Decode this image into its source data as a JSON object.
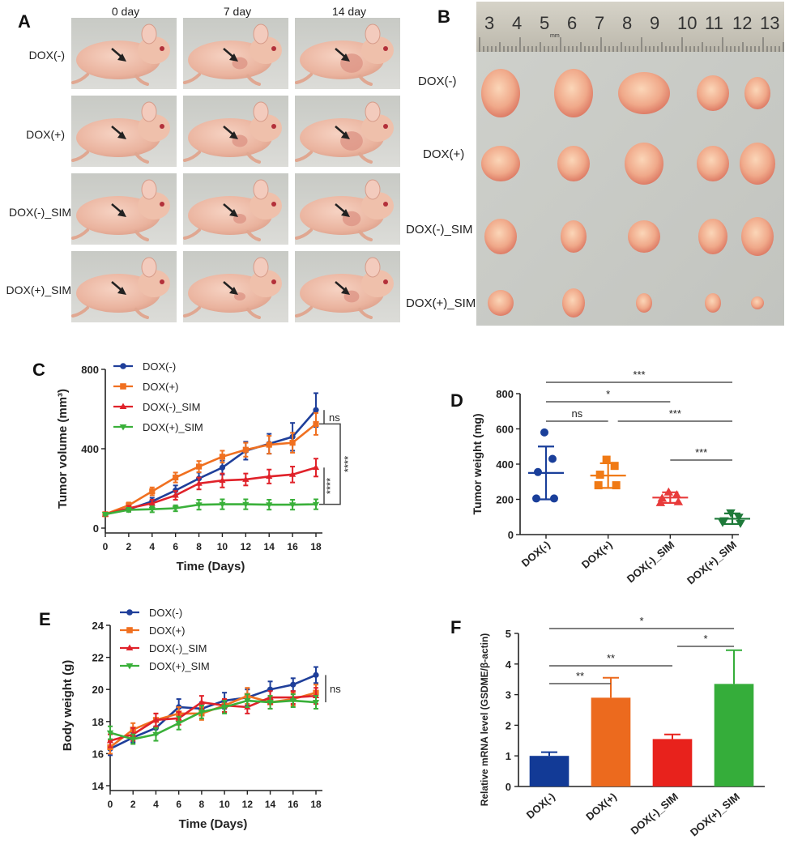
{
  "panel_a": {
    "letter": "A",
    "columns": [
      "0 day",
      "7 day",
      "14 day"
    ],
    "rows": [
      "DOX(-)",
      "DOX(+)",
      "DOX(-)_SIM",
      "DOX(+)_SIM"
    ]
  },
  "panel_b": {
    "letter": "B",
    "rows": [
      "DOX(-)",
      "DOX(+)",
      "DOX(-)_SIM",
      "DOX(+)_SIM"
    ],
    "ruler_numbers": [
      "3",
      "4",
      "5",
      "6",
      "7",
      "8",
      "9",
      "10",
      "11",
      "12",
      "13"
    ],
    "ruler_unit": "mm"
  },
  "chart_data": [
    {
      "panel": "C",
      "type": "line",
      "xlabel": "Time (Days)",
      "ylabel": "Tumor volume (mm³)",
      "x": [
        0,
        2,
        4,
        6,
        8,
        10,
        12,
        14,
        16,
        18
      ],
      "xticks": [
        "0",
        "2",
        "4",
        "6",
        "8",
        "10",
        "12",
        "14",
        "16",
        "18"
      ],
      "ylim": [
        0,
        800
      ],
      "yticks": [
        "0",
        "400",
        "800"
      ],
      "legend_position": "top-left",
      "series": [
        {
          "name": "DOX(-)",
          "color": "#1f3f9a",
          "marker": "circle",
          "values": [
            70,
            95,
            135,
            190,
            250,
            305,
            390,
            425,
            460,
            595
          ],
          "errors": [
            8,
            12,
            18,
            25,
            30,
            35,
            45,
            50,
            70,
            85
          ]
        },
        {
          "name": "DOX(+)",
          "color": "#f07020",
          "marker": "square",
          "values": [
            70,
            115,
            185,
            255,
            310,
            360,
            395,
            420,
            430,
            525
          ],
          "errors": [
            8,
            14,
            20,
            25,
            28,
            30,
            35,
            45,
            50,
            55
          ]
        },
        {
          "name": "DOX(-)_SIM",
          "color": "#e0222a",
          "marker": "triangle-up",
          "values": [
            70,
            100,
            125,
            165,
            225,
            240,
            245,
            260,
            270,
            305
          ],
          "errors": [
            8,
            12,
            18,
            22,
            30,
            35,
            30,
            35,
            40,
            45
          ]
        },
        {
          "name": "DOX(+)_SIM",
          "color": "#3ab03a",
          "marker": "triangle-down",
          "values": [
            70,
            92,
            95,
            100,
            118,
            120,
            120,
            118,
            118,
            120
          ],
          "errors": [
            6,
            10,
            15,
            15,
            25,
            25,
            25,
            25,
            25,
            25
          ]
        }
      ],
      "annotations": [
        "ns",
        "****",
        "****"
      ]
    },
    {
      "panel": "D",
      "type": "scatter",
      "ylabel": "Tumor weight  (mg)",
      "categories": [
        "DOX(-)",
        "DOX(+)",
        "DOX(-)_SIM",
        "DOX(+)_SIM"
      ],
      "ylim": [
        0,
        800
      ],
      "yticks": [
        "0",
        "200",
        "400",
        "600",
        "800"
      ],
      "groups": [
        {
          "name": "DOX(-)",
          "color": "#1a3f9a",
          "marker": "circle",
          "points": [
            580,
            430,
            355,
            205,
            205
          ],
          "mean": 350,
          "sd": 150
        },
        {
          "name": "DOX(+)",
          "color": "#f07a15",
          "marker": "square",
          "points": [
            425,
            390,
            340,
            280,
            280
          ],
          "mean": 335,
          "sd": 70
        },
        {
          "name": "DOX(-)_SIM",
          "color": "#e83a3a",
          "marker": "triangle-up",
          "points": [
            240,
            225,
            205,
            180,
            185
          ],
          "mean": 210,
          "sd": 30
        },
        {
          "name": "DOX(+)_SIM",
          "color": "#1f7a3a",
          "marker": "triangle-down",
          "points": [
            125,
            100,
            80,
            70,
            65
          ],
          "mean": 90,
          "sd": 30
        }
      ],
      "significance": [
        {
          "from": 0,
          "to": 3,
          "label": "***"
        },
        {
          "from": 0,
          "to": 2,
          "label": "*"
        },
        {
          "from": 0,
          "to": 1,
          "label": "ns"
        },
        {
          "from": 1,
          "to": 3,
          "label": "***"
        },
        {
          "from": 2,
          "to": 3,
          "label": "***"
        }
      ]
    },
    {
      "panel": "E",
      "type": "line",
      "xlabel": "Time (Days)",
      "ylabel": "Body weight (g)",
      "x": [
        0,
        2,
        4,
        6,
        8,
        10,
        12,
        14,
        16,
        18
      ],
      "xticks": [
        "0",
        "2",
        "4",
        "6",
        "8",
        "10",
        "12",
        "14",
        "16",
        "18"
      ],
      "ylim": [
        14,
        24
      ],
      "yticks": [
        "14",
        "16",
        "18",
        "20",
        "22",
        "24"
      ],
      "legend_position": "top-left",
      "series": [
        {
          "name": "DOX(-)",
          "color": "#1f3f9a",
          "marker": "circle",
          "values": [
            16.3,
            17.0,
            17.6,
            18.9,
            18.8,
            19.3,
            19.5,
            20.0,
            20.3,
            20.9
          ],
          "errors": [
            0.4,
            0.3,
            0.4,
            0.5,
            0.4,
            0.5,
            0.5,
            0.5,
            0.4,
            0.5
          ]
        },
        {
          "name": "DOX(+)",
          "color": "#f07020",
          "marker": "square",
          "values": [
            16.4,
            17.5,
            18.1,
            18.5,
            18.5,
            19.0,
            19.6,
            19.2,
            19.4,
            19.8
          ],
          "errors": [
            0.4,
            0.4,
            0.4,
            0.4,
            0.4,
            0.4,
            0.5,
            0.4,
            0.4,
            0.5
          ]
        },
        {
          "name": "DOX(-)_SIM",
          "color": "#e0222a",
          "marker": "triangle-up",
          "values": [
            16.8,
            17.2,
            18.1,
            18.2,
            19.2,
            19.0,
            18.9,
            19.5,
            19.5,
            19.6
          ],
          "errors": [
            0.4,
            0.4,
            0.4,
            0.4,
            0.4,
            0.4,
            0.4,
            0.4,
            0.4,
            0.5
          ]
        },
        {
          "name": "DOX(+)_SIM",
          "color": "#3ab03a",
          "marker": "triangle-down",
          "values": [
            17.3,
            16.9,
            17.2,
            17.9,
            18.6,
            18.9,
            19.3,
            19.2,
            19.3,
            19.2
          ],
          "errors": [
            0.4,
            0.3,
            0.4,
            0.4,
            0.4,
            0.4,
            0.4,
            0.4,
            0.4,
            0.4
          ]
        }
      ],
      "annotations": [
        "ns"
      ]
    },
    {
      "panel": "F",
      "type": "bar",
      "ylabel": "Relative mRNA level (GSDME/β-actin)",
      "categories": [
        "DOX(-)",
        "DOX(+)",
        "DOX(-)_SIM",
        "DOX(+)_SIM"
      ],
      "values": [
        1.0,
        2.9,
        1.55,
        3.35
      ],
      "errors": [
        0.12,
        0.65,
        0.15,
        1.1
      ],
      "colors": [
        "#123a96",
        "#ec6a1e",
        "#e8221c",
        "#35ad3a"
      ],
      "ylim": [
        0,
        5
      ],
      "yticks": [
        "0",
        "1",
        "2",
        "3",
        "4",
        "5"
      ],
      "significance": [
        {
          "from": 0,
          "to": 3,
          "label": "*"
        },
        {
          "from": 2,
          "to": 3,
          "label": "*"
        },
        {
          "from": 0,
          "to": 2,
          "label": "**"
        },
        {
          "from": 0,
          "to": 1,
          "label": "**"
        }
      ]
    }
  ]
}
